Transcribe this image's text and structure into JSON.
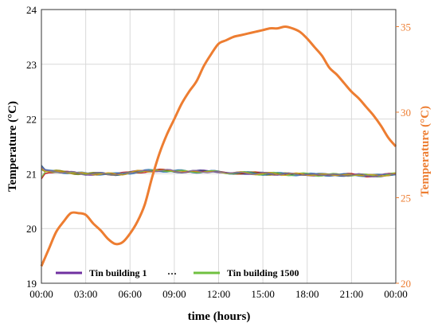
{
  "chart_data": {
    "type": "line",
    "xlabel": "time (hours)",
    "ylabel_left": "Temperature (°C)",
    "ylabel_right": "Temperature (°C)",
    "x_ticks": [
      "00:00",
      "03:00",
      "06:00",
      "09:00",
      "12:00",
      "15:00",
      "18:00",
      "21:00",
      "00:00"
    ],
    "x_range_hours": [
      0,
      24
    ],
    "y_left_range": [
      19,
      24
    ],
    "y_left_ticks": [
      "19",
      "20",
      "21",
      "22",
      "23",
      "24"
    ],
    "y_right_range": [
      20,
      36
    ],
    "y_right_ticks": [
      "20",
      "25",
      "30",
      "35"
    ],
    "grid": true,
    "legend_position": "bottom-left",
    "legend": {
      "first": "Tin building 1",
      "ellipsis": "…",
      "last": "Tin building 1500"
    },
    "colors": {
      "outdoor": "#ed7d31",
      "first_series": "#7030a0",
      "last_series": "#70c040",
      "ellipsis": "#000000",
      "band_palette": [
        "#7030a0",
        "#1f4e79",
        "#c00000",
        "#808000",
        "#2e75b6",
        "#70c040",
        "#d4a017",
        "#8064a2"
      ]
    },
    "series": [
      {
        "axis": "right",
        "x": [
          0,
          0.5,
          1,
          1.5,
          2,
          2.5,
          3,
          3.5,
          4,
          4.5,
          5,
          5.5,
          6,
          6.5,
          7,
          7.5,
          8,
          8.5,
          9,
          9.5,
          10,
          10.5,
          11,
          11.5,
          12,
          12.5,
          13,
          13.5,
          14,
          14.5,
          15,
          15.5,
          16,
          16.5,
          17,
          17.5,
          18,
          18.5,
          19,
          19.5,
          20,
          20.5,
          21,
          21.5,
          22,
          22.5,
          23,
          23.5,
          24
        ],
        "values": [
          21.0,
          22.0,
          23.0,
          23.6,
          24.1,
          24.1,
          24.0,
          23.5,
          23.1,
          22.6,
          22.3,
          22.4,
          22.9,
          23.6,
          24.6,
          26.2,
          27.6,
          28.7,
          29.6,
          30.5,
          31.2,
          31.8,
          32.7,
          33.4,
          34.0,
          34.2,
          34.4,
          34.5,
          34.6,
          34.7,
          34.8,
          34.9,
          34.9,
          35.0,
          34.9,
          34.7,
          34.3,
          33.8,
          33.3,
          32.6,
          32.2,
          31.7,
          31.2,
          30.8,
          30.3,
          29.8,
          29.2,
          28.5,
          28.0
        ]
      },
      {
        "axis": "left",
        "x": [
          0,
          1,
          2,
          3,
          4,
          5,
          6,
          7,
          8,
          9,
          10,
          11,
          12,
          13,
          14,
          15,
          16,
          17,
          18,
          19,
          20,
          21,
          22,
          23,
          24
        ],
        "values": [
          21.05,
          21.04,
          21.02,
          21.0,
          21.0,
          20.99,
          21.02,
          21.05,
          21.06,
          21.05,
          21.04,
          21.04,
          21.03,
          21.02,
          21.01,
          21.0,
          21.0,
          20.99,
          20.99,
          20.98,
          20.98,
          20.98,
          20.97,
          20.97,
          21.0
        ]
      }
    ]
  }
}
